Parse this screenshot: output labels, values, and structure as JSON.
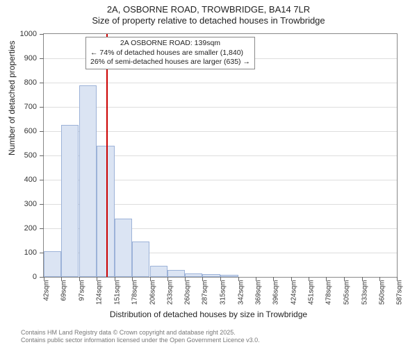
{
  "title": {
    "main": "2A, OSBORNE ROAD, TROWBRIDGE, BA14 7LR",
    "sub": "Size of property relative to detached houses in Trowbridge"
  },
  "ylabel": "Number of detached properties",
  "xlabel": "Distribution of detached houses by size in Trowbridge",
  "chart": {
    "type": "histogram",
    "ylim": [
      0,
      1000
    ],
    "ytick_step": 100,
    "bar_fill": "#dbe4f3",
    "bar_border": "#9cb2d8",
    "grid_color": "#dddddd",
    "axis_color": "#888888",
    "background": "#ffffff",
    "marker_color": "#cc0000",
    "marker_x_value": 139,
    "x_ticks": [
      42,
      69,
      97,
      124,
      151,
      178,
      206,
      233,
      260,
      287,
      315,
      342,
      369,
      396,
      424,
      451,
      478,
      505,
      533,
      560,
      587
    ],
    "x_tick_suffix": "sqm",
    "bars": [
      {
        "x": 42,
        "value": 105
      },
      {
        "x": 69,
        "value": 625
      },
      {
        "x": 97,
        "value": 790
      },
      {
        "x": 124,
        "value": 540
      },
      {
        "x": 151,
        "value": 240
      },
      {
        "x": 178,
        "value": 145
      },
      {
        "x": 206,
        "value": 45
      },
      {
        "x": 233,
        "value": 30
      },
      {
        "x": 260,
        "value": 15
      },
      {
        "x": 287,
        "value": 12
      },
      {
        "x": 315,
        "value": 10
      }
    ],
    "annotation": {
      "line1": "2A OSBORNE ROAD: 139sqm",
      "line2": "← 74% of detached houses are smaller (1,840)",
      "line3": "26% of semi-detached houses are larger (635) →",
      "box_border": "#888888",
      "box_bg": "#ffffff",
      "fontsize": 10.5
    }
  },
  "footer": {
    "line1": "Contains HM Land Registry data © Crown copyright and database right 2025.",
    "line2": "Contains public sector information licensed under the Open Government Licence v3.0."
  }
}
